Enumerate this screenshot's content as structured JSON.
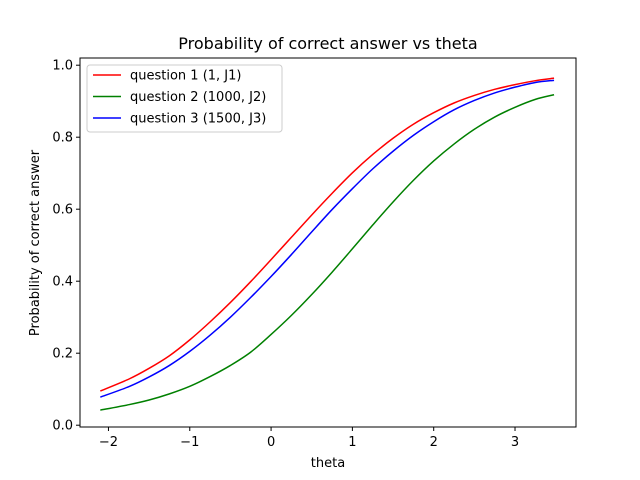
{
  "chart_data": {
    "type": "line",
    "title": "Probability of correct answer vs theta",
    "xlabel": "theta",
    "ylabel": "Probability of correct answer",
    "xlim": [
      -2.35,
      3.75
    ],
    "ylim": [
      -0.005,
      1.02
    ],
    "xticks": [
      -2,
      -1,
      0,
      1,
      2,
      3
    ],
    "xtick_labels": [
      "−2",
      "−1",
      "0",
      "1",
      "2",
      "3"
    ],
    "yticks": [
      0.0,
      0.2,
      0.4,
      0.6,
      0.8,
      1.0
    ],
    "ytick_labels": [
      "0.0",
      "0.2",
      "0.4",
      "0.6",
      "0.8",
      "1.0"
    ],
    "grid": false,
    "legend_position": "top-left",
    "x": [
      -2.1,
      -1.75,
      -1.5,
      -1.25,
      -1.0,
      -0.75,
      -0.5,
      -0.25,
      0.0,
      0.25,
      0.5,
      0.75,
      1.0,
      1.25,
      1.5,
      1.75,
      2.0,
      2.25,
      2.5,
      2.75,
      3.0,
      3.25,
      3.48
    ],
    "series": [
      {
        "name": "question 1 (1, J1)",
        "color": "#ff0000",
        "values": [
          0.095,
          0.128,
          0.158,
          0.193,
          0.237,
          0.287,
          0.341,
          0.399,
          0.46,
          0.522,
          0.584,
          0.644,
          0.701,
          0.752,
          0.797,
          0.836,
          0.868,
          0.895,
          0.916,
          0.933,
          0.946,
          0.957,
          0.964
        ]
      },
      {
        "name": "question 2 (1000, J2)",
        "color": "#008000",
        "values": [
          0.042,
          0.057,
          0.07,
          0.087,
          0.108,
          0.135,
          0.166,
          0.203,
          0.252,
          0.305,
          0.363,
          0.425,
          0.49,
          0.556,
          0.62,
          0.68,
          0.734,
          0.781,
          0.822,
          0.856,
          0.883,
          0.905,
          0.918
        ]
      },
      {
        "name": "question 3 (1500, J3)",
        "color": "#0000ff",
        "values": [
          0.078,
          0.107,
          0.134,
          0.166,
          0.205,
          0.25,
          0.3,
          0.355,
          0.413,
          0.474,
          0.537,
          0.599,
          0.657,
          0.712,
          0.761,
          0.805,
          0.843,
          0.876,
          0.902,
          0.923,
          0.939,
          0.952,
          0.958
        ]
      }
    ]
  }
}
